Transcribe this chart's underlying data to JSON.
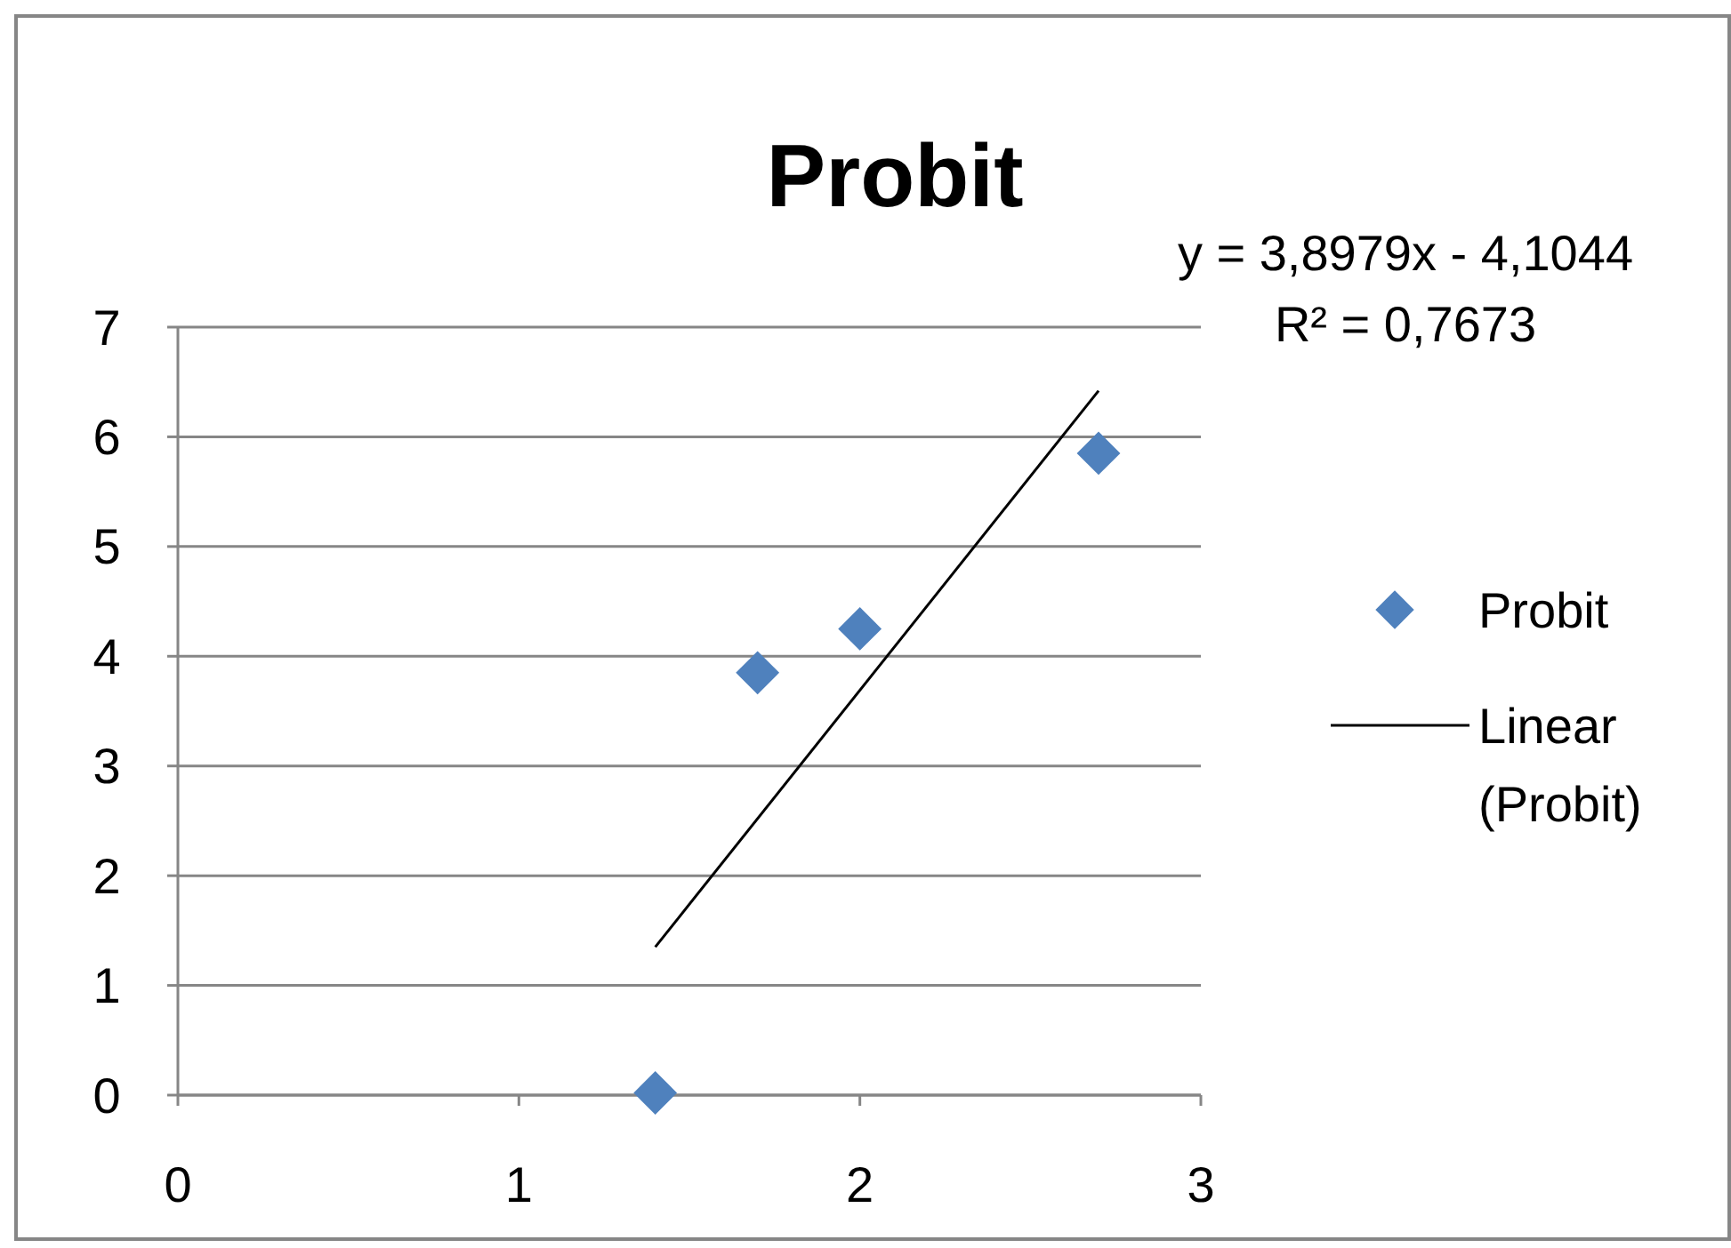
{
  "chart_data": {
    "type": "scatter",
    "title": "Probit",
    "annotations": [
      "y = 3,8979x - 4,1044",
      "R² = 0,7673"
    ],
    "xlim": [
      0,
      3
    ],
    "xticks": [
      0,
      1,
      2,
      3
    ],
    "ylim": [
      0,
      7
    ],
    "yticks": [
      0,
      1,
      2,
      3,
      4,
      5,
      6,
      7
    ],
    "grid": "y",
    "legend": "right",
    "marker": "diamond",
    "series": [
      {
        "name": "Probit",
        "color": "#4f81bd",
        "x": [
          1.4,
          1.7,
          2.0,
          2.7
        ],
        "values": [
          0.02,
          3.85,
          4.25,
          5.85
        ]
      },
      {
        "name": "Linear (Probit)",
        "type": "line",
        "color": "#000000",
        "marker": "none",
        "line_style": "solid",
        "x": [
          1.4,
          2.7
        ],
        "values": [
          1.35,
          6.42
        ]
      }
    ]
  }
}
